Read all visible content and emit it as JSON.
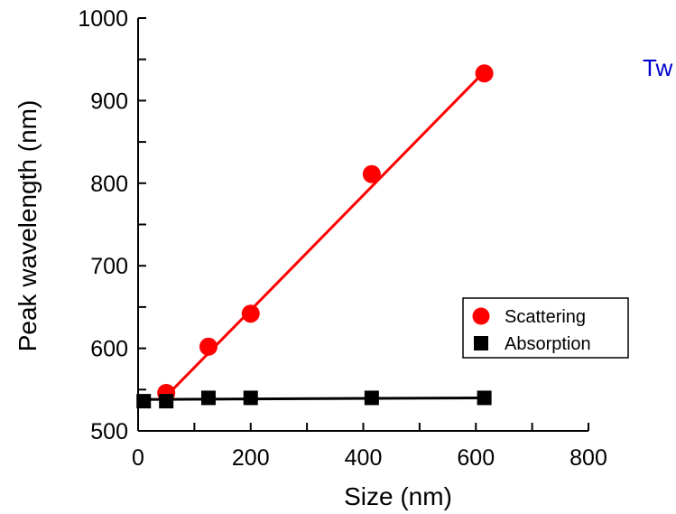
{
  "chart_data": {
    "type": "scatter",
    "title": "",
    "xlabel": "Size (nm)",
    "ylabel": "Peak wavelength (nm)",
    "xlim": [
      0,
      800
    ],
    "ylim": [
      500,
      1000
    ],
    "x_ticks": [
      0,
      200,
      400,
      600,
      800
    ],
    "y_ticks": [
      500,
      600,
      700,
      800,
      900,
      1000
    ],
    "grid": false,
    "legend_position": "bottom-right",
    "series": [
      {
        "name": "Scattering",
        "marker": "circle",
        "color": "#ff0000",
        "x": [
          50,
          125,
          200,
          415,
          615
        ],
        "y": [
          546,
          602,
          642,
          811,
          933
        ],
        "fit_line": {
          "x": [
            50,
            615
          ],
          "y": [
            542,
            935
          ]
        }
      },
      {
        "name": "Absorption",
        "marker": "square",
        "color": "#000000",
        "x": [
          10,
          50,
          125,
          200,
          415,
          615
        ],
        "y": [
          536,
          536,
          540,
          540,
          540,
          540
        ],
        "fit_line": {
          "x": [
            0,
            615
          ],
          "y": [
            538,
            540
          ]
        }
      }
    ]
  },
  "corner_text": {
    "text": "Tw",
    "color": "#0000cc"
  }
}
